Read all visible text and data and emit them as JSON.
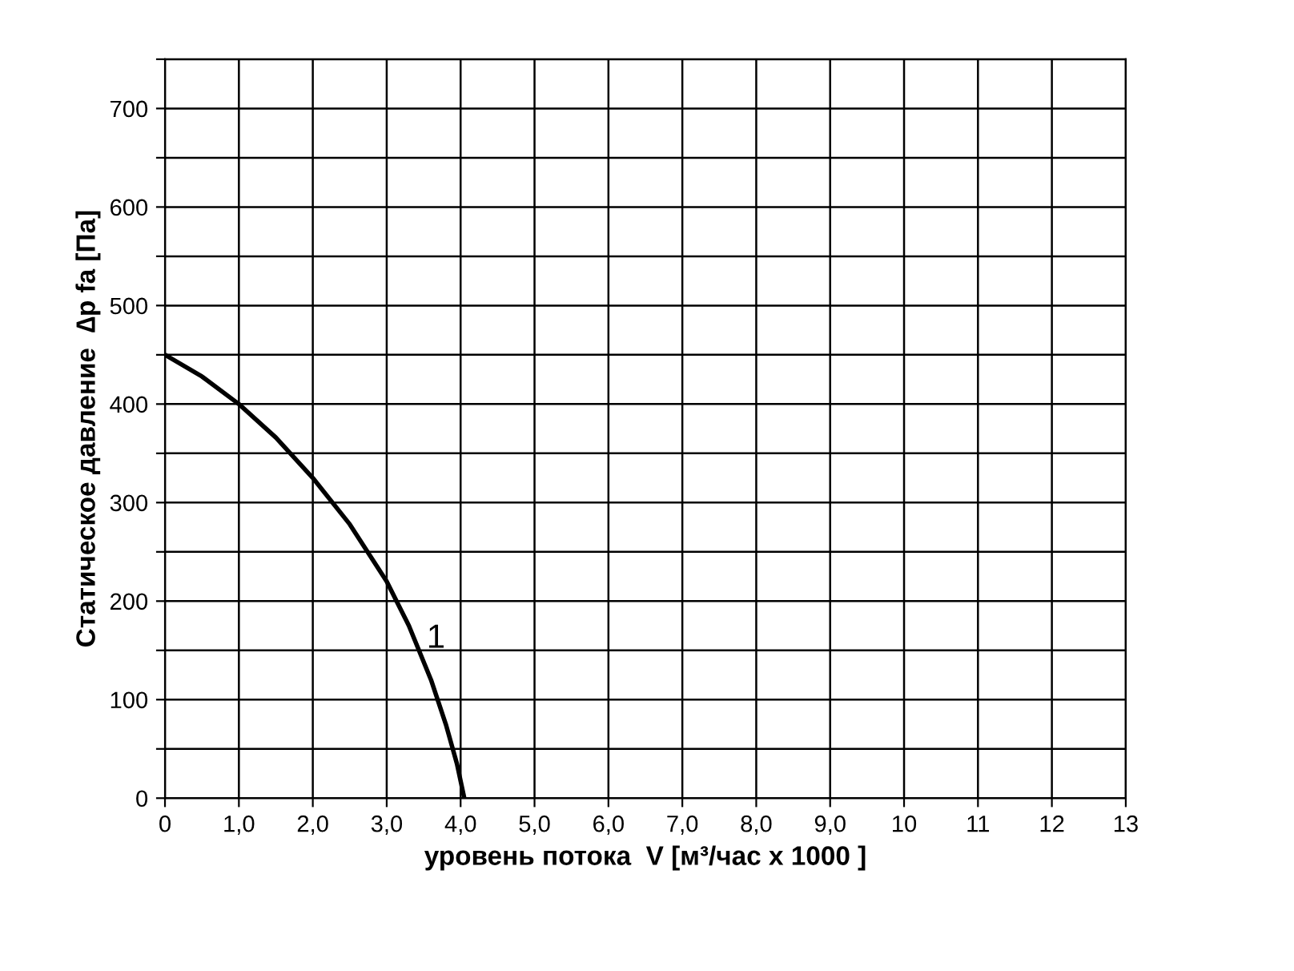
{
  "chart_data": {
    "type": "line",
    "xlabel": "уровень потока  V [м³/час x 1000 ]",
    "ylabel": "Статическое давление  ∆p fa [Па]",
    "series": [
      {
        "color": "#000000",
        "x": [
          0,
          0.5,
          1.0,
          1.5,
          2.0,
          2.5,
          3.0,
          3.3,
          3.6,
          3.8,
          3.95,
          4.05
        ],
        "values": [
          450,
          428,
          400,
          366,
          325,
          278,
          220,
          175,
          120,
          75,
          35,
          0
        ]
      }
    ],
    "annotations": [
      "1"
    ],
    "xlim": [
      0,
      13
    ],
    "xticks": [
      0,
      {
        "value": 1,
        "label": "1,0"
      },
      {
        "value": 2,
        "label": "2,0"
      },
      {
        "value": 3,
        "label": "3,0"
      },
      {
        "value": 4,
        "label": "4,0"
      },
      {
        "value": 5,
        "label": "5,0"
      },
      {
        "value": 6,
        "label": "6,0"
      },
      {
        "value": 7,
        "label": "7,0"
      },
      {
        "value": 8,
        "label": "8,0"
      },
      {
        "value": 9,
        "label": "9,0"
      },
      10,
      11,
      12,
      13
    ],
    "ylim": [
      0,
      750
    ],
    "yticks": [
      0,
      {
        "value": 50,
        "label": null
      },
      100,
      {
        "value": 150,
        "label": null
      },
      200,
      {
        "value": 250,
        "label": null
      },
      300,
      {
        "value": 350,
        "label": null
      },
      400,
      {
        "value": 450,
        "label": null
      },
      500,
      {
        "value": 550,
        "label": null
      },
      600,
      {
        "value": 650,
        "label": null
      },
      700,
      {
        "value": 750,
        "label": null
      }
    ],
    "grid": true,
    "marker": "none",
    "line_style": "solid"
  }
}
